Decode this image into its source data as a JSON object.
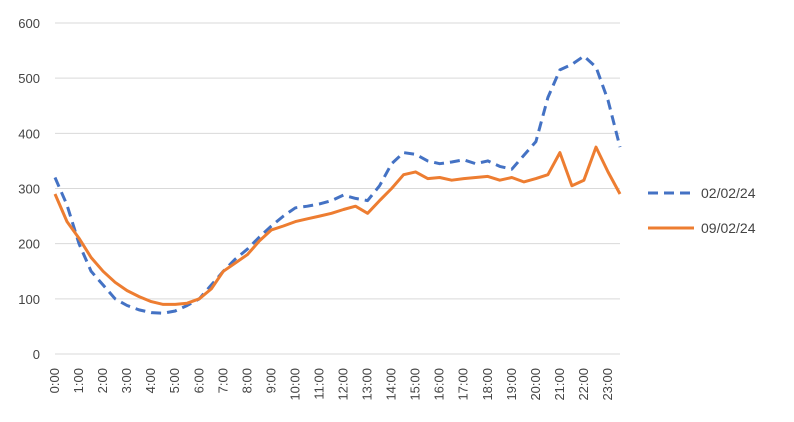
{
  "chart_data": {
    "type": "line",
    "title": "",
    "xlabel": "",
    "ylabel": "",
    "ylim": [
      0,
      600
    ],
    "yticks": [
      0,
      100,
      200,
      300,
      400,
      500,
      600
    ],
    "grid": "horizontal",
    "legend_position": "right",
    "x_tick_labels": [
      "0:00",
      "1:00",
      "2:00",
      "3:00",
      "4:00",
      "5:00",
      "6:00",
      "7:00",
      "8:00",
      "9:00",
      "10:00",
      "11:00",
      "12:00",
      "13:00",
      "14:00",
      "15:00",
      "16:00",
      "17:00",
      "18:00",
      "19:00",
      "20:00",
      "21:00",
      "22:00",
      "23:00"
    ],
    "x": [
      "0:00",
      "0:30",
      "1:00",
      "1:30",
      "2:00",
      "2:30",
      "3:00",
      "3:30",
      "4:00",
      "4:30",
      "5:00",
      "5:30",
      "6:00",
      "6:30",
      "7:00",
      "7:30",
      "8:00",
      "8:30",
      "9:00",
      "9:30",
      "10:00",
      "10:30",
      "11:00",
      "11:30",
      "12:00",
      "12:30",
      "13:00",
      "13:30",
      "14:00",
      "14:30",
      "15:00",
      "15:30",
      "16:00",
      "16:30",
      "17:00",
      "17:30",
      "18:00",
      "18:30",
      "19:00",
      "19:30",
      "20:00",
      "20:30",
      "21:00",
      "21:30",
      "22:00",
      "22:30",
      "23:00",
      "23:30"
    ],
    "series": [
      {
        "name": "02/02/24",
        "color": "#4472C4",
        "style": "dashed",
        "values": [
          320,
          270,
          200,
          150,
          125,
          100,
          88,
          80,
          75,
          74,
          78,
          88,
          100,
          125,
          150,
          172,
          190,
          212,
          232,
          250,
          265,
          268,
          272,
          278,
          288,
          282,
          278,
          305,
          345,
          365,
          362,
          350,
          345,
          348,
          352,
          345,
          350,
          340,
          335,
          360,
          385,
          465,
          515,
          525,
          540,
          520,
          460,
          375
        ]
      },
      {
        "name": "09/02/24",
        "color": "#ED7D31",
        "style": "solid",
        "values": [
          290,
          240,
          210,
          175,
          150,
          130,
          115,
          104,
          95,
          90,
          90,
          92,
          100,
          118,
          150,
          165,
          180,
          205,
          225,
          232,
          240,
          245,
          250,
          255,
          262,
          268,
          255,
          278,
          300,
          325,
          330,
          318,
          320,
          315,
          318,
          320,
          322,
          315,
          320,
          312,
          318,
          325,
          365,
          305,
          315,
          375,
          330,
          290
        ]
      }
    ]
  }
}
